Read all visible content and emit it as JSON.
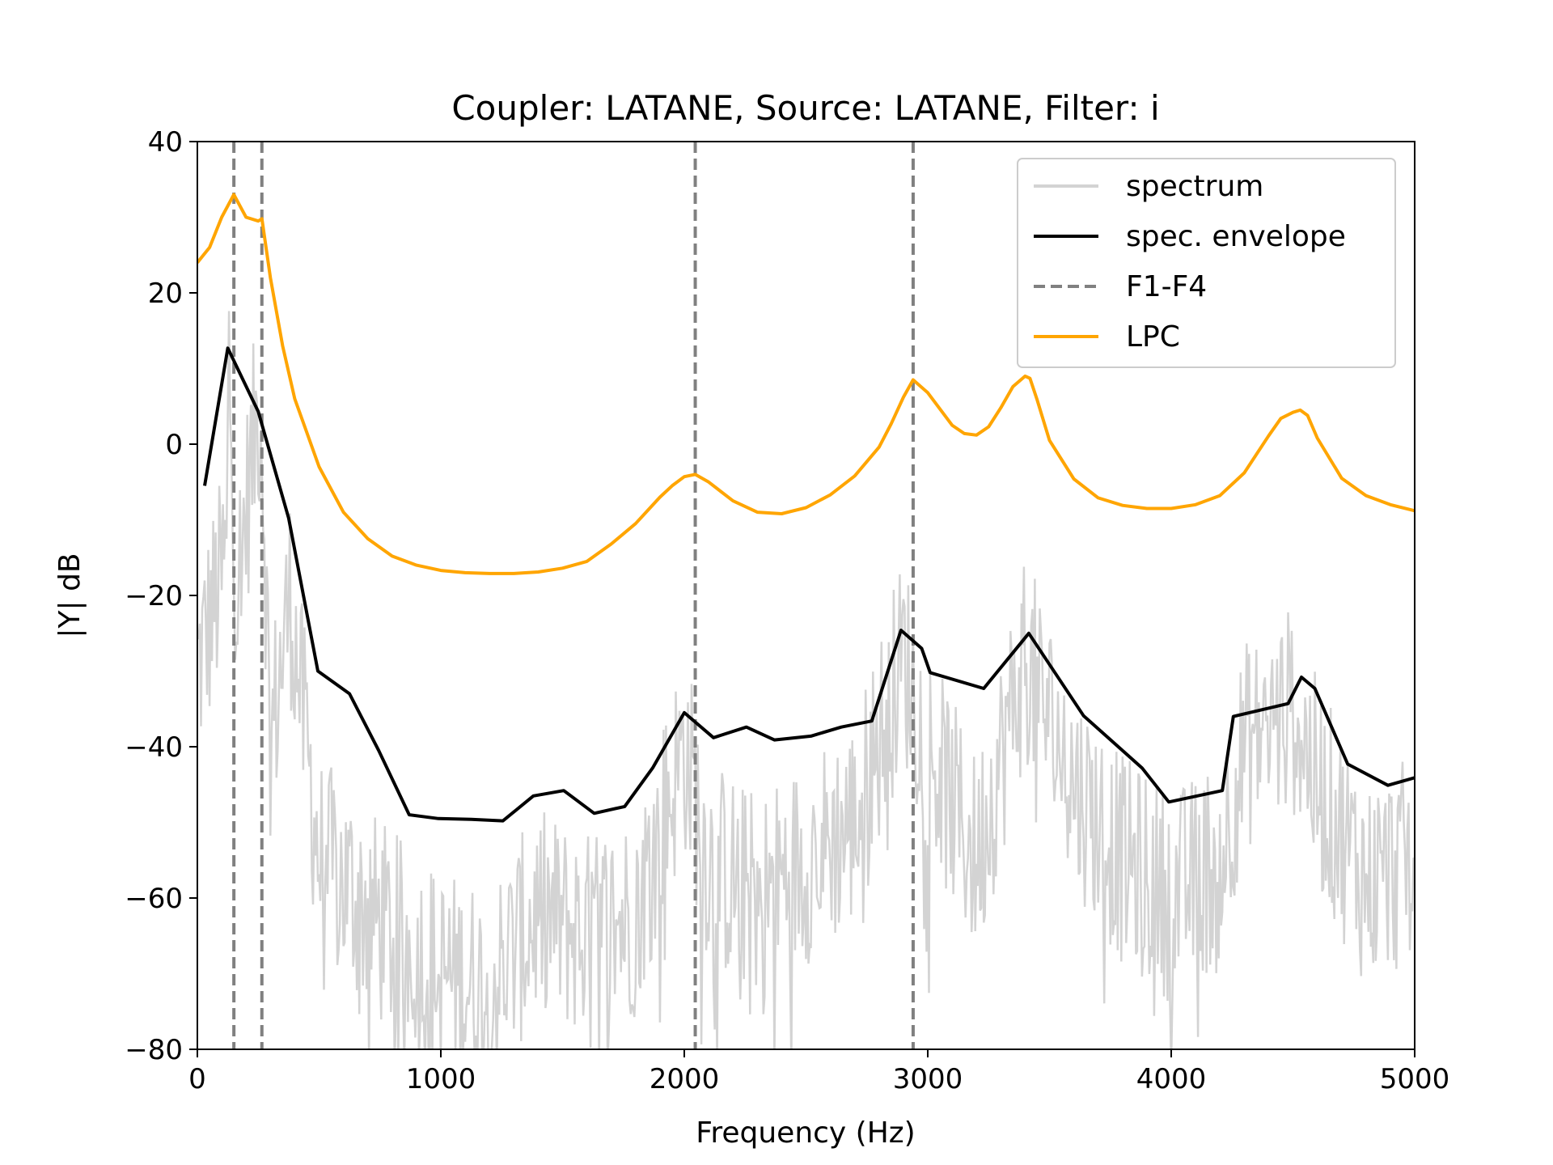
{
  "chart_data": {
    "type": "line",
    "title": "Coupler: LATANE, Source: LATANE, Filter: i",
    "xlabel": "Frequency (Hz)",
    "ylabel": "|Y| dB",
    "xlim": [
      0,
      5000
    ],
    "ylim": [
      -80,
      40
    ],
    "xticks": [
      0,
      1000,
      2000,
      3000,
      4000,
      5000
    ],
    "yticks": [
      -80,
      -60,
      -40,
      -20,
      0,
      20,
      40
    ],
    "grid": false,
    "legend_position": "top-right",
    "series": [
      {
        "name": "spectrum",
        "style": "solid",
        "color": "#d3d3d3",
        "description_points": [
          [
            0,
            -30
          ],
          [
            120,
            -15
          ],
          [
            130,
            12
          ],
          [
            160,
            -20
          ],
          [
            250,
            5
          ],
          [
            265,
            2
          ],
          [
            300,
            -40
          ],
          [
            380,
            -20
          ],
          [
            500,
            -55
          ],
          [
            600,
            -58
          ],
          [
            800,
            -65
          ],
          [
            1000,
            -70
          ],
          [
            1200,
            -72
          ],
          [
            1400,
            -62
          ],
          [
            1600,
            -65
          ],
          [
            1800,
            -62
          ],
          [
            2000,
            -40
          ],
          [
            2100,
            -55
          ],
          [
            2300,
            -60
          ],
          [
            2500,
            -55
          ],
          [
            2700,
            -50
          ],
          [
            2900,
            -28
          ],
          [
            3000,
            -40
          ],
          [
            3200,
            -55
          ],
          [
            3400,
            -28
          ],
          [
            3600,
            -45
          ],
          [
            3800,
            -55
          ],
          [
            4000,
            -60
          ],
          [
            4200,
            -55
          ],
          [
            4300,
            -40
          ],
          [
            4500,
            -35
          ],
          [
            4600,
            -45
          ],
          [
            4800,
            -58
          ],
          [
            5000,
            -55
          ]
        ]
      },
      {
        "name": "spec. envelope",
        "style": "solid",
        "color": "#000000",
        "x": [
          30,
          125,
          250,
          375,
          495,
          625,
          745,
          870,
          990,
          1125,
          1255,
          1380,
          1505,
          1630,
          1755,
          1870,
          2000,
          2120,
          2255,
          2370,
          2520,
          2645,
          2770,
          2890,
          2975,
          3010,
          3230,
          3415,
          3640,
          3880,
          3990,
          4210,
          4255,
          4480,
          4535,
          4590,
          4725,
          4890,
          5000
        ],
        "y": [
          -5.5,
          12.7,
          4.3,
          -9.8,
          -30,
          -33,
          -40.5,
          -49,
          -49.5,
          -49.6,
          -49.8,
          -46.5,
          -45.8,
          -48.8,
          -47.9,
          -42.8,
          -35.5,
          -38.8,
          -37.4,
          -39.1,
          -38.6,
          -37.4,
          -36.6,
          -24.6,
          -27,
          -30.2,
          -32.3,
          -25,
          -35.9,
          -42.8,
          -47.3,
          -45.8,
          -36,
          -34.3,
          -30.8,
          -32.3,
          -42.3,
          -45.1,
          -44.1
        ]
      },
      {
        "name": "F1-F4",
        "style": "dashed",
        "color": "#808080",
        "x": [
          150,
          265,
          2045,
          2940
        ]
      },
      {
        "name": "LPC",
        "style": "solid",
        "color": "#ffa500",
        "x": [
          0,
          50,
          100,
          150,
          200,
          250,
          265,
          300,
          350,
          400,
          500,
          600,
          700,
          800,
          900,
          1000,
          1100,
          1200,
          1300,
          1400,
          1500,
          1600,
          1700,
          1800,
          1900,
          1950,
          2000,
          2045,
          2100,
          2200,
          2300,
          2400,
          2500,
          2600,
          2700,
          2800,
          2850,
          2900,
          2940,
          3000,
          3100,
          3150,
          3200,
          3250,
          3300,
          3350,
          3400,
          3420,
          3450,
          3500,
          3600,
          3700,
          3800,
          3900,
          4000,
          4100,
          4200,
          4300,
          4400,
          4450,
          4500,
          4530,
          4560,
          4600,
          4700,
          4800,
          4900,
          5000
        ],
        "y": [
          24,
          26,
          30,
          33,
          30,
          29.5,
          29.8,
          22,
          13,
          6,
          -3,
          -9,
          -12.5,
          -14.8,
          -16,
          -16.7,
          -17,
          -17.1,
          -17.1,
          -16.9,
          -16.4,
          -15.5,
          -13.2,
          -10.5,
          -7,
          -5.5,
          -4.3,
          -4,
          -5,
          -7.5,
          -9,
          -9.2,
          -8.4,
          -6.7,
          -4.2,
          -0.4,
          2.7,
          6.2,
          8.5,
          6.8,
          2.5,
          1.4,
          1.2,
          2.3,
          4.8,
          7.6,
          9,
          8.7,
          5.8,
          0.5,
          -4.6,
          -7.1,
          -8.1,
          -8.5,
          -8.5,
          -8,
          -6.8,
          -3.8,
          1.1,
          3.4,
          4.2,
          4.5,
          3.8,
          0.8,
          -4.5,
          -6.8,
          -8,
          -8.8
        ]
      }
    ]
  }
}
